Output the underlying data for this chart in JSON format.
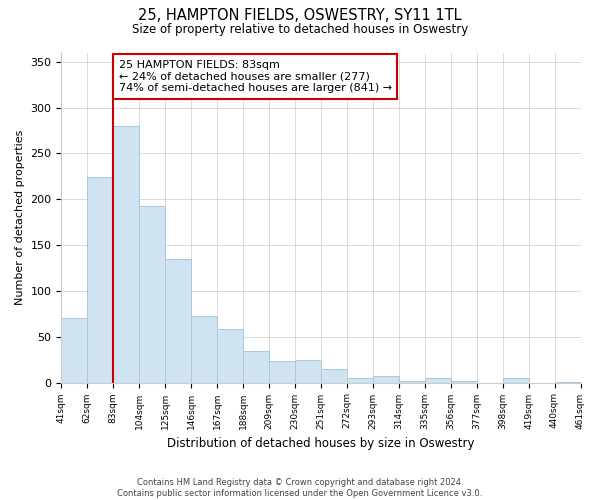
{
  "title": "25, HAMPTON FIELDS, OSWESTRY, SY11 1TL",
  "subtitle": "Size of property relative to detached houses in Oswestry",
  "xlabel": "Distribution of detached houses by size in Oswestry",
  "ylabel": "Number of detached properties",
  "bar_labels": [
    "41sqm",
    "62sqm",
    "83sqm",
    "104sqm",
    "125sqm",
    "146sqm",
    "167sqm",
    "188sqm",
    "209sqm",
    "230sqm",
    "251sqm",
    "272sqm",
    "293sqm",
    "314sqm",
    "335sqm",
    "356sqm",
    "377sqm",
    "398sqm",
    "419sqm",
    "440sqm",
    "461sqm"
  ],
  "bar_values": [
    70,
    224,
    280,
    193,
    135,
    73,
    58,
    34,
    23,
    25,
    15,
    5,
    7,
    2,
    5,
    2,
    0,
    5,
    0,
    1,
    0
  ],
  "bar_color": "#d0e3f0",
  "bar_edge_color": "#a8c8e0",
  "vline_color": "#cc0000",
  "vline_index": 2,
  "ylim": [
    0,
    360
  ],
  "yticks": [
    0,
    50,
    100,
    150,
    200,
    250,
    300,
    350
  ],
  "annotation_text": "25 HAMPTON FIELDS: 83sqm\n← 24% of detached houses are smaller (277)\n74% of semi-detached houses are larger (841) →",
  "annotation_box_facecolor": "#ffffff",
  "annotation_box_edgecolor": "#cc0000",
  "footer_line1": "Contains HM Land Registry data © Crown copyright and database right 2024.",
  "footer_line2": "Contains public sector information licensed under the Open Government Licence v3.0.",
  "grid_color": "#cccccc",
  "figsize": [
    6.0,
    5.0
  ],
  "dpi": 100
}
